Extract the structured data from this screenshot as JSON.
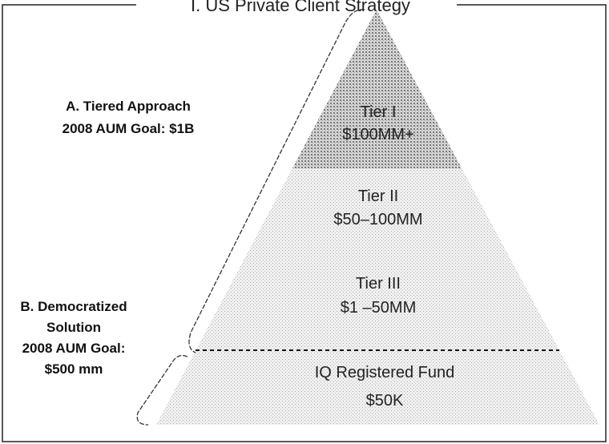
{
  "title": "I. US Private Client Strategy",
  "side_labels": [
    {
      "lines": [
        "A. Tiered Approach",
        "2008 AUM Goal:  $1B"
      ]
    },
    {
      "lines": [
        "B. Democratized",
        "Solution",
        "2008 AUM Goal:",
        "$500 mm"
      ]
    }
  ],
  "tiers": [
    {
      "name": "Tier I",
      "range": "$100MM+"
    },
    {
      "name": "Tier II",
      "range": "$50–100MM"
    },
    {
      "name": "Tier III",
      "range": "$1 –50MM"
    },
    {
      "name": "IQ Registered Fund",
      "range": "$50K"
    }
  ]
}
